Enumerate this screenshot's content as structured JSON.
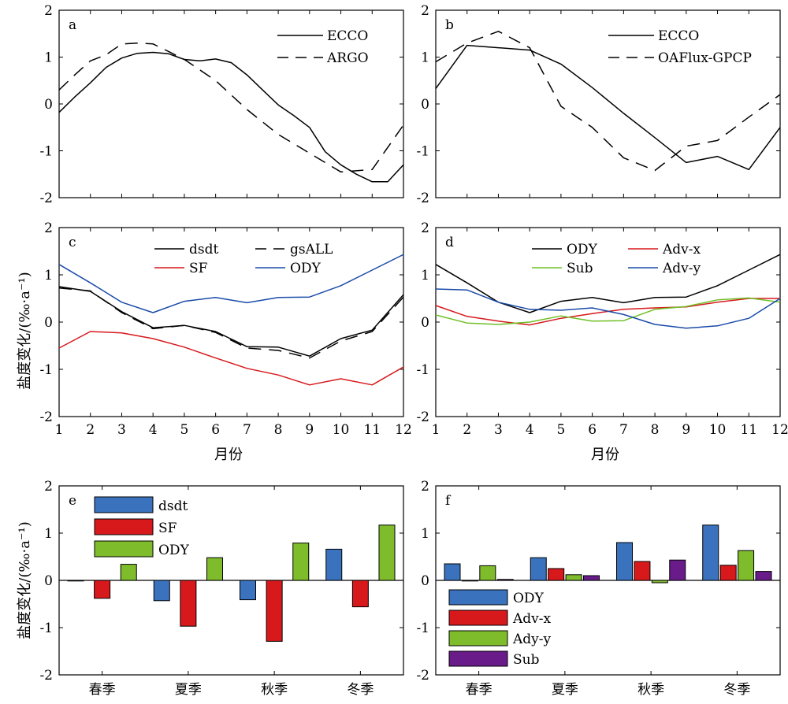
{
  "axis_titles": {
    "ylabel_line": "盐度变化/(‰·a⁻¹)",
    "ylabel_bar": "盐度变化/(‰·a⁻¹)",
    "xlabel_month_left": "月份",
    "xlabel_month_right": "月份"
  },
  "chart_data": [
    {
      "id": "a",
      "type": "line",
      "panel_label": "a",
      "x": [
        1,
        2,
        3,
        4,
        5,
        6,
        7,
        8,
        9,
        10,
        11,
        12
      ],
      "x_ticks_labeled": false,
      "ylim": [
        -2,
        2
      ],
      "y_ticks": [
        -2,
        -1,
        0,
        1,
        2
      ],
      "legend_position": "top-right",
      "series": [
        {
          "name": "ECCO",
          "color": "#000000",
          "dash": "solid",
          "points": [
            [
              1,
              -0.18
            ],
            [
              1.5,
              0.15
            ],
            [
              2,
              0.45
            ],
            [
              2.5,
              0.78
            ],
            [
              3,
              0.98
            ],
            [
              3.5,
              1.08
            ],
            [
              4,
              1.1
            ],
            [
              4.5,
              1.07
            ],
            [
              5,
              0.95
            ],
            [
              5.5,
              0.92
            ],
            [
              6,
              0.96
            ],
            [
              6.5,
              0.88
            ],
            [
              7,
              0.62
            ],
            [
              7.5,
              0.3
            ],
            [
              8,
              -0.02
            ],
            [
              8.5,
              -0.25
            ],
            [
              9,
              -0.5
            ],
            [
              9.5,
              -1.02
            ],
            [
              10,
              -1.3
            ],
            [
              10.5,
              -1.5
            ],
            [
              11,
              -1.66
            ],
            [
              11.5,
              -1.66
            ],
            [
              12,
              -1.3
            ]
          ]
        },
        {
          "name": "ARGO",
          "color": "#000000",
          "dash": "long",
          "points": [
            [
              1,
              0.3
            ],
            [
              1.5,
              0.62
            ],
            [
              2,
              0.92
            ],
            [
              2.5,
              1.05
            ],
            [
              3,
              1.28
            ],
            [
              3.5,
              1.3
            ],
            [
              4,
              1.28
            ],
            [
              4.5,
              1.12
            ],
            [
              5,
              0.95
            ],
            [
              6,
              0.5
            ],
            [
              7,
              -0.12
            ],
            [
              8,
              -0.65
            ],
            [
              9,
              -1.05
            ],
            [
              10,
              -1.45
            ],
            [
              11,
              -1.4
            ],
            [
              12,
              -0.45
            ]
          ]
        }
      ]
    },
    {
      "id": "b",
      "type": "line",
      "panel_label": "b",
      "x": [
        1,
        2,
        3,
        4,
        5,
        6,
        7,
        8,
        9,
        10,
        11,
        12
      ],
      "x_ticks_labeled": false,
      "ylim": [
        -2,
        2
      ],
      "y_ticks": [
        -2,
        -1,
        0,
        1,
        2
      ],
      "legend_position": "top-right",
      "series": [
        {
          "name": "ECCO",
          "color": "#000000",
          "dash": "solid",
          "points": [
            [
              1,
              0.33
            ],
            [
              2,
              1.25
            ],
            [
              3,
              1.2
            ],
            [
              4,
              1.15
            ],
            [
              5,
              0.85
            ],
            [
              6,
              0.35
            ],
            [
              7,
              -0.2
            ],
            [
              8,
              -0.72
            ],
            [
              9,
              -1.25
            ],
            [
              10,
              -1.12
            ],
            [
              11,
              -1.4
            ],
            [
              12,
              -0.5
            ]
          ]
        },
        {
          "name": "OAFlux-GPCP",
          "color": "#000000",
          "dash": "long",
          "points": [
            [
              1,
              0.9
            ],
            [
              2,
              1.3
            ],
            [
              3,
              1.55
            ],
            [
              4,
              1.2
            ],
            [
              5,
              -0.05
            ],
            [
              6,
              -0.5
            ],
            [
              7,
              -1.15
            ],
            [
              8,
              -1.42
            ],
            [
              9,
              -0.9
            ],
            [
              10,
              -0.78
            ],
            [
              11,
              -0.28
            ],
            [
              12,
              0.2
            ]
          ]
        }
      ]
    },
    {
      "id": "c",
      "type": "line",
      "panel_label": "c",
      "x": [
        1,
        2,
        3,
        4,
        5,
        6,
        7,
        8,
        9,
        10,
        11,
        12
      ],
      "x_ticks_labeled": true,
      "ylim": [
        -2,
        2
      ],
      "y_ticks": [
        -2,
        -1,
        0,
        1,
        2
      ],
      "legend_position": "top-center",
      "series": [
        {
          "name": "dsdt",
          "color": "#000000",
          "dash": "solid",
          "values": [
            0.75,
            0.65,
            0.22,
            -0.12,
            -0.07,
            -0.2,
            -0.52,
            -0.53,
            -0.72,
            -0.35,
            -0.17,
            0.58
          ]
        },
        {
          "name": "gsALL",
          "color": "#000000",
          "dash": "long",
          "values": [
            0.72,
            0.66,
            0.2,
            -0.14,
            -0.07,
            -0.22,
            -0.55,
            -0.6,
            -0.76,
            -0.4,
            -0.2,
            0.53
          ]
        },
        {
          "name": "SF",
          "color": "#d7191c",
          "dash": "solid",
          "values": [
            -0.55,
            -0.2,
            -0.23,
            -0.35,
            -0.53,
            -0.76,
            -0.98,
            -1.12,
            -1.33,
            -1.2,
            -1.33,
            -0.95
          ]
        },
        {
          "name": "ODY",
          "color": "#1a4ba8",
          "dash": "solid",
          "values": [
            1.22,
            0.83,
            0.42,
            0.2,
            0.44,
            0.52,
            0.41,
            0.52,
            0.53,
            0.77,
            1.1,
            1.43
          ]
        }
      ]
    },
    {
      "id": "d",
      "type": "line",
      "panel_label": "d",
      "x": [
        1,
        2,
        3,
        4,
        5,
        6,
        7,
        8,
        9,
        10,
        11,
        12
      ],
      "x_ticks_labeled": true,
      "ylim": [
        -2,
        2
      ],
      "y_ticks": [
        -2,
        -1,
        0,
        1,
        2
      ],
      "legend_position": "top-center",
      "series": [
        {
          "name": "ODY",
          "color": "#000000",
          "dash": "solid",
          "values": [
            1.22,
            0.83,
            0.42,
            0.2,
            0.44,
            0.52,
            0.41,
            0.52,
            0.53,
            0.77,
            1.1,
            1.43
          ]
        },
        {
          "name": "Adv-x",
          "color": "#d7191c",
          "dash": "solid",
          "values": [
            0.35,
            0.12,
            0.02,
            -0.06,
            0.08,
            0.18,
            0.27,
            0.3,
            0.32,
            0.42,
            0.5,
            0.5
          ]
        },
        {
          "name": "Sub",
          "color": "#6fbf27",
          "dash": "solid",
          "values": [
            0.15,
            -0.02,
            -0.05,
            0.0,
            0.13,
            0.02,
            0.03,
            0.27,
            0.33,
            0.47,
            0.51,
            0.42
          ]
        },
        {
          "name": "Adv-y",
          "color": "#1a4ba8",
          "dash": "solid",
          "values": [
            0.7,
            0.68,
            0.42,
            0.27,
            0.25,
            0.3,
            0.16,
            -0.05,
            -0.13,
            -0.08,
            0.08,
            0.5
          ]
        }
      ]
    },
    {
      "id": "e",
      "type": "bar",
      "panel_label": "e",
      "categories": [
        "春季",
        "夏季",
        "秋季",
        "冬季"
      ],
      "ylim": [
        -2,
        2
      ],
      "y_ticks": [
        -2,
        -1,
        0,
        1,
        2
      ],
      "legend_position": "top-left",
      "series": [
        {
          "name": "dsdt",
          "color": "#3a72be",
          "values": [
            0.0,
            -0.43,
            -0.41,
            0.66
          ]
        },
        {
          "name": "SF",
          "color": "#d7191c",
          "values": [
            -0.38,
            -0.97,
            -1.29,
            -0.56
          ]
        },
        {
          "name": "ODY",
          "color": "#7fbc2c",
          "values": [
            0.34,
            0.48,
            0.79,
            1.17
          ]
        }
      ]
    },
    {
      "id": "f",
      "type": "bar",
      "panel_label": "f",
      "categories": [
        "春季",
        "夏季",
        "秋季",
        "冬季"
      ],
      "ylim": [
        -2,
        2
      ],
      "y_ticks": [
        -2,
        -1,
        0,
        1,
        2
      ],
      "legend_position": "bottom-left",
      "series": [
        {
          "name": "ODY",
          "color": "#3a72be",
          "values": [
            0.35,
            0.48,
            0.8,
            1.17
          ]
        },
        {
          "name": "Adv-x",
          "color": "#d7191c",
          "values": [
            0.0,
            0.25,
            0.4,
            0.32
          ]
        },
        {
          "name": "Ady-y",
          "color": "#7fbc2c",
          "values": [
            0.31,
            0.12,
            -0.05,
            0.63
          ]
        },
        {
          "name": "Sub",
          "color": "#6a1b8a",
          "values": [
            0.02,
            0.1,
            0.43,
            0.19
          ]
        }
      ]
    }
  ]
}
